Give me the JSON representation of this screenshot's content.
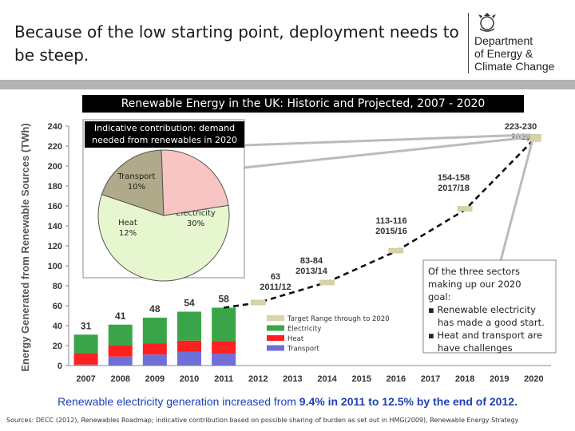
{
  "slide": {
    "title": "Because of the low starting point, deployment needs to be steep.",
    "logo_lines": [
      "Department",
      "of Energy &",
      "Climate Change"
    ],
    "logo_icon": "royal-crest-icon"
  },
  "chart_data": {
    "type": "bar",
    "title": "Renewable Energy in the UK: Historic and Projected, 2007 - 2020",
    "ylabel": "Energy Generated from Renewable Sources (TWh)",
    "xlabel": "",
    "ylim": [
      0,
      240
    ],
    "yticks": [
      0,
      20,
      40,
      60,
      80,
      100,
      120,
      140,
      160,
      180,
      200,
      220,
      240
    ],
    "categories": [
      "2007",
      "2008",
      "2009",
      "2010",
      "2011",
      "2012",
      "2013",
      "2014",
      "2015",
      "2016",
      "2017",
      "2018",
      "2019",
      "2020"
    ],
    "series": [
      {
        "name": "Transport",
        "color": "#6f6fd8",
        "values": [
          1,
          9,
          11,
          14,
          12,
          null,
          null,
          null,
          null,
          null,
          null,
          null,
          null,
          null
        ]
      },
      {
        "name": "Heat",
        "color": "#ff2020",
        "values": [
          11,
          11,
          11,
          11,
          12,
          null,
          null,
          null,
          null,
          null,
          null,
          null,
          null,
          null
        ]
      },
      {
        "name": "Electricity",
        "color": "#3aa548",
        "values": [
          19,
          21,
          26,
          29,
          34,
          null,
          null,
          null,
          null,
          null,
          null,
          null,
          null,
          null
        ]
      }
    ],
    "bar_totals": [
      "31",
      "41",
      "48",
      "54",
      "58"
    ],
    "target_range": {
      "name": "Target Range through to 2020",
      "color": "#d8d4a8",
      "points": [
        {
          "x": "2012",
          "low": 62,
          "high": 64
        },
        {
          "x": "2014",
          "low": 83,
          "high": 84
        },
        {
          "x": "2016",
          "low": 113,
          "high": 116
        },
        {
          "x": "2018",
          "low": 154,
          "high": 158
        },
        {
          "x": "2020",
          "low": 223,
          "high": 230
        }
      ]
    },
    "trajectory": [
      [
        2011,
        58
      ],
      [
        2012,
        63
      ],
      [
        2014,
        83.5
      ],
      [
        2016,
        114.5
      ],
      [
        2018,
        156
      ],
      [
        2020,
        226.5
      ]
    ],
    "annotations": [
      {
        "line1": "63",
        "line2": "2011/12"
      },
      {
        "line1": "83-84",
        "line2": "2013/14"
      },
      {
        "line1": "113-116",
        "line2": "2015/16"
      },
      {
        "line1": "154-158",
        "line2": "2017/18"
      },
      {
        "line1": "223-230",
        "line2": "2020"
      }
    ],
    "legend": [
      "Target Range through to 2020",
      "Electricity",
      "Heat",
      "Transport"
    ],
    "legend_placement": "bottom-right",
    "grid": false
  },
  "inset_pie": {
    "label": "Indicative contribution: demand needed from renewables in 2020",
    "slices": [
      {
        "name": "Transport",
        "pct_label": "10%",
        "value": 10,
        "color": "#b0a98a"
      },
      {
        "name": "Electricity",
        "pct_label": "30%",
        "value": 30,
        "color": "#e6f7d0"
      },
      {
        "name": "Heat",
        "pct_label": "12%",
        "value": 12,
        "color": "#f8c4c4"
      }
    ]
  },
  "callout": {
    "intro": "Of the three sectors making up our 2020 goal:",
    "bullets": [
      "Renewable electricity has made a good start.",
      "Heat and transport are have challenges"
    ]
  },
  "footline": {
    "prefix": "Renewable electricity generation increased from ",
    "bold1": "9.4% in 2011 to 12.5% by the end of 2012.",
    "suffix": ""
  },
  "sources": {
    "text": "Sources:  DECC (2012), Renewables Roadmap; indicative contribution based on possible sharing of burden as set out in HMG(2009), Renewable Energy Strategy"
  }
}
